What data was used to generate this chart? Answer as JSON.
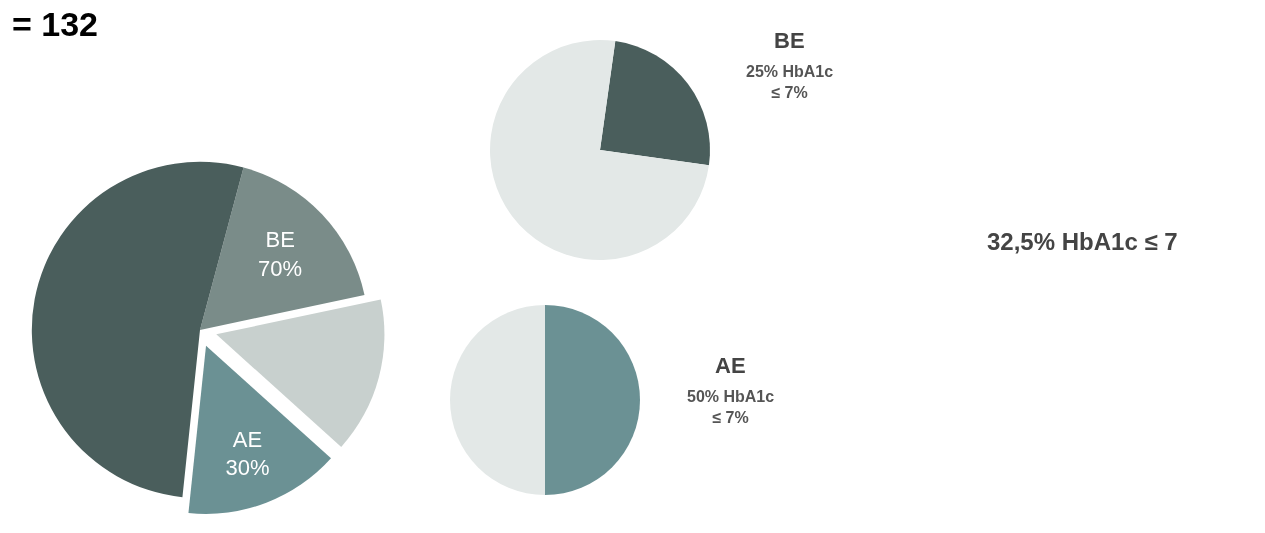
{
  "chart_data": [
    {
      "type": "pie",
      "title": "= 132",
      "categories": [
        null,
        null,
        null,
        null
      ],
      "values": [
        17.5,
        15,
        15,
        52.5
      ],
      "colors": [
        "#7a8c89",
        "#c8d0ce",
        "#6b9194",
        "#4a5e5c"
      ],
      "value_labels": [
        "BE\n70%",
        null,
        "AE\n30%",
        null
      ],
      "annotations": [
        "32,5% HbA1c ≤ 7"
      ]
    },
    {
      "type": "pie",
      "title": "BE",
      "subtitle": "25% HbA1c\n≤ 7%",
      "categories": [
        null,
        null
      ],
      "values": [
        25,
        75
      ],
      "colors": [
        "#4a5e5c",
        "#e3e8e7"
      ]
    },
    {
      "type": "pie",
      "title": "AE",
      "subtitle": "50% HbA1c\n≤ 7%",
      "categories": [
        null,
        null
      ],
      "values": [
        50,
        50
      ],
      "colors": [
        "#6b9194",
        "#e3e8e7"
      ]
    }
  ]
}
